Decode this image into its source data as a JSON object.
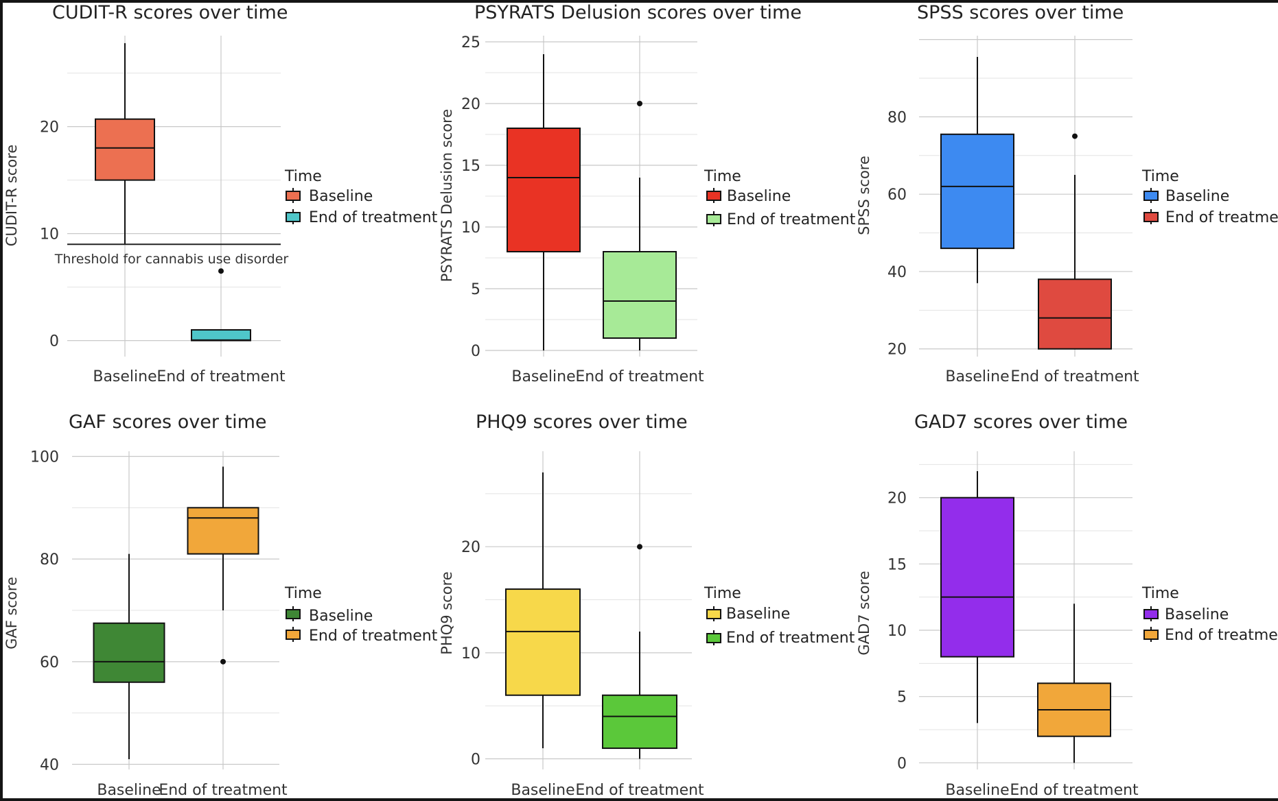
{
  "chart_data": [
    {
      "type": "boxplot",
      "title": "CUDIT-R scores over time",
      "ylabel": "CUDIT-R score",
      "xlabel": "",
      "categories": [
        "Baseline",
        "End of treatment"
      ],
      "ylim": [
        -1.5,
        28.5
      ],
      "yticks": [
        0,
        10,
        20
      ],
      "legend_title": "Time",
      "series": [
        {
          "name": "Baseline",
          "color": "#ec7051",
          "min": 9,
          "q1": 15,
          "median": 18,
          "q3": 20.7,
          "max": 27.8,
          "outliers": []
        },
        {
          "name": "End of treatment",
          "color": "#4fc6c9",
          "min": 0,
          "q1": 0,
          "median": 0.05,
          "q3": 1,
          "max": 1,
          "outliers": [
            6.5
          ]
        }
      ],
      "threshold": {
        "value": 9,
        "label": "Threshold for cannabis use disorder"
      }
    },
    {
      "type": "boxplot",
      "title": "PSYRATS Delusion scores over time",
      "ylabel": "PSYRATS Delusion score",
      "xlabel": "",
      "categories": [
        "Baseline",
        "End of treatment"
      ],
      "ylim": [
        -0.5,
        25.5
      ],
      "yticks": [
        0,
        5,
        10,
        15,
        20,
        25
      ],
      "legend_title": "Time",
      "series": [
        {
          "name": "Baseline",
          "color": "#e93324",
          "min": 0,
          "q1": 8,
          "median": 14,
          "q3": 18,
          "max": 24,
          "outliers": []
        },
        {
          "name": "End of treatment",
          "color": "#a7ea97",
          "min": 0,
          "q1": 1,
          "median": 4,
          "q3": 8,
          "max": 14,
          "outliers": [
            20
          ]
        }
      ]
    },
    {
      "type": "boxplot",
      "title": "SPSS scores over time",
      "ylabel": "SPSS score",
      "xlabel": "",
      "categories": [
        "Baseline",
        "End of treatment"
      ],
      "ylim": [
        18,
        101
      ],
      "yticks": [
        20,
        40,
        60,
        80
      ],
      "legend_title": "Time",
      "series": [
        {
          "name": "Baseline",
          "color": "#3d8af1",
          "min": 37,
          "q1": 46,
          "median": 62,
          "q3": 75.5,
          "max": 95.5,
          "outliers": []
        },
        {
          "name": "End of treatment",
          "color": "#df4a40",
          "min": 20,
          "q1": 20,
          "median": 28,
          "q3": 38,
          "max": 65,
          "outliers": [
            75
          ]
        }
      ]
    },
    {
      "type": "boxplot",
      "title": "GAF scores over time",
      "ylabel": "GAF score",
      "xlabel": "",
      "categories": [
        "Baseline",
        "End of treatment"
      ],
      "ylim": [
        39,
        101
      ],
      "yticks": [
        40,
        60,
        80,
        100
      ],
      "legend_title": "Time",
      "series": [
        {
          "name": "Baseline",
          "color": "#3f8735",
          "min": 41,
          "q1": 56,
          "median": 60,
          "q3": 67.5,
          "max": 81,
          "outliers": []
        },
        {
          "name": "End of treatment",
          "color": "#f1a73a",
          "min": 70,
          "q1": 81,
          "median": 88,
          "q3": 90,
          "max": 98,
          "outliers": [
            60
          ]
        }
      ]
    },
    {
      "type": "boxplot",
      "title": "PHQ9 scores over time",
      "ylabel": "PHQ9 score",
      "xlabel": "",
      "categories": [
        "Baseline",
        "End of treatment"
      ],
      "ylim": [
        -1,
        29
      ],
      "yticks": [
        0,
        10,
        20
      ],
      "legend_title": "Time",
      "series": [
        {
          "name": "Baseline",
          "color": "#f7d84a",
          "min": 1,
          "q1": 6,
          "median": 12,
          "q3": 16,
          "max": 27,
          "outliers": []
        },
        {
          "name": "End of treatment",
          "color": "#5bc83a",
          "min": 0,
          "q1": 1,
          "median": 4,
          "q3": 6,
          "max": 12,
          "outliers": [
            20
          ]
        }
      ]
    },
    {
      "type": "boxplot",
      "title": "GAD7 scores over time",
      "ylabel": "GAD7 score",
      "xlabel": "",
      "categories": [
        "Baseline",
        "End of treatment"
      ],
      "ylim": [
        -0.5,
        23.5
      ],
      "yticks": [
        0,
        5,
        10,
        15,
        20
      ],
      "legend_title": "Time",
      "series": [
        {
          "name": "Baseline",
          "color": "#932deb",
          "min": 3,
          "q1": 8,
          "median": 12.5,
          "q3": 20,
          "max": 22,
          "outliers": []
        },
        {
          "name": "End of treatment",
          "color": "#f1a73a",
          "min": 0,
          "q1": 2,
          "median": 4,
          "q3": 6,
          "max": 12,
          "outliers": []
        }
      ]
    }
  ]
}
